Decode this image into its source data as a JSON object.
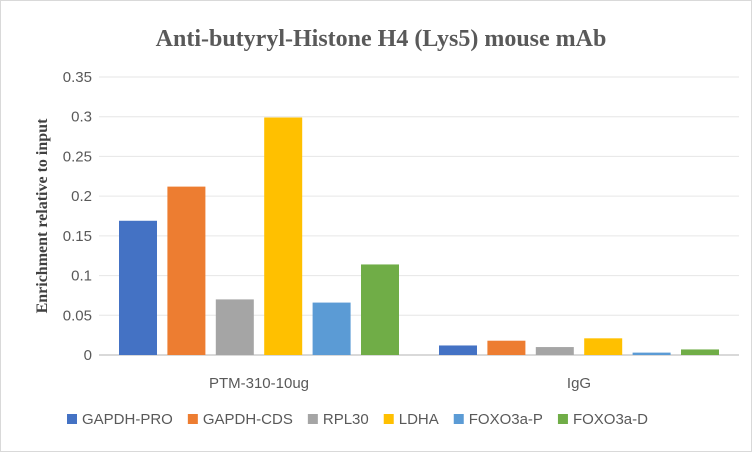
{
  "chart_data": {
    "type": "bar",
    "title": "Anti-butyryl-Histone H4 (Lys5) mouse mAb",
    "xlabel": "",
    "ylabel": "Enrichment relative to input",
    "ylim": [
      0,
      0.35
    ],
    "yticks": [
      "0",
      "0.05",
      "0.1",
      "0.15",
      "0.2",
      "0.25",
      "0.3",
      "0.35"
    ],
    "grid": true,
    "legend_position": "bottom",
    "categories": [
      "PTM-310-10ug",
      "IgG"
    ],
    "series": [
      {
        "name": "GAPDH-PRO",
        "color": "#4472C4",
        "values": [
          0.169,
          0.012
        ]
      },
      {
        "name": "GAPDH-CDS",
        "color": "#ED7D31",
        "values": [
          0.212,
          0.018
        ]
      },
      {
        "name": "RPL30",
        "color": "#A5A5A5",
        "values": [
          0.07,
          0.01
        ]
      },
      {
        "name": "LDHA",
        "color": "#FFC000",
        "values": [
          0.299,
          0.021
        ]
      },
      {
        "name": "FOXO3a-P",
        "color": "#5B9BD5",
        "values": [
          0.066,
          0.003
        ]
      },
      {
        "name": "FOXO3a-D",
        "color": "#70AD47",
        "values": [
          0.114,
          0.007
        ]
      }
    ]
  }
}
